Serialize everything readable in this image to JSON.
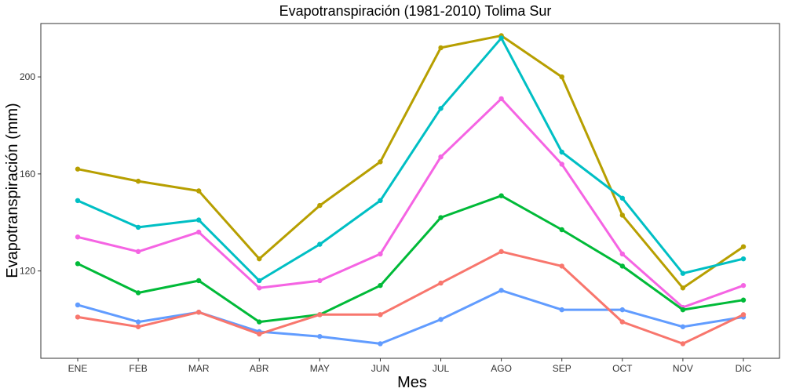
{
  "chart_data": {
    "type": "line",
    "title": "Evapotranspiración (1981-2010)  Tolima Sur",
    "xlabel": "Mes",
    "ylabel": "Evapotranspiración (mm)",
    "categories": [
      "ENE",
      "FEB",
      "MAR",
      "ABR",
      "MAY",
      "JUN",
      "JUL",
      "AGO",
      "SEP",
      "OCT",
      "NOV",
      "DIC"
    ],
    "yticks": [
      120,
      160,
      200
    ],
    "ylim": [
      84,
      222
    ],
    "grid": false,
    "legend": "none",
    "series": [
      {
        "color": "#B79F00",
        "values": [
          162,
          157,
          153,
          125,
          147,
          165,
          212,
          217,
          200,
          143,
          113,
          130
        ]
      },
      {
        "color": "#00BFC4",
        "values": [
          149,
          138,
          141,
          116,
          131,
          149,
          187,
          216,
          169,
          150,
          119,
          125
        ]
      },
      {
        "color": "#F564E3",
        "values": [
          134,
          128,
          136,
          113,
          116,
          127,
          167,
          191,
          164,
          127,
          105,
          114
        ]
      },
      {
        "color": "#00BA38",
        "values": [
          123,
          111,
          116,
          99,
          102,
          114,
          142,
          151,
          137,
          122,
          104,
          108
        ]
      },
      {
        "color": "#619CFF",
        "values": [
          106,
          99,
          103,
          95,
          93,
          90,
          100,
          112,
          104,
          104,
          97,
          101
        ]
      },
      {
        "color": "#F8766D",
        "values": [
          101,
          97,
          103,
          94,
          102,
          102,
          115,
          128,
          122,
          99,
          90,
          102
        ]
      }
    ]
  }
}
